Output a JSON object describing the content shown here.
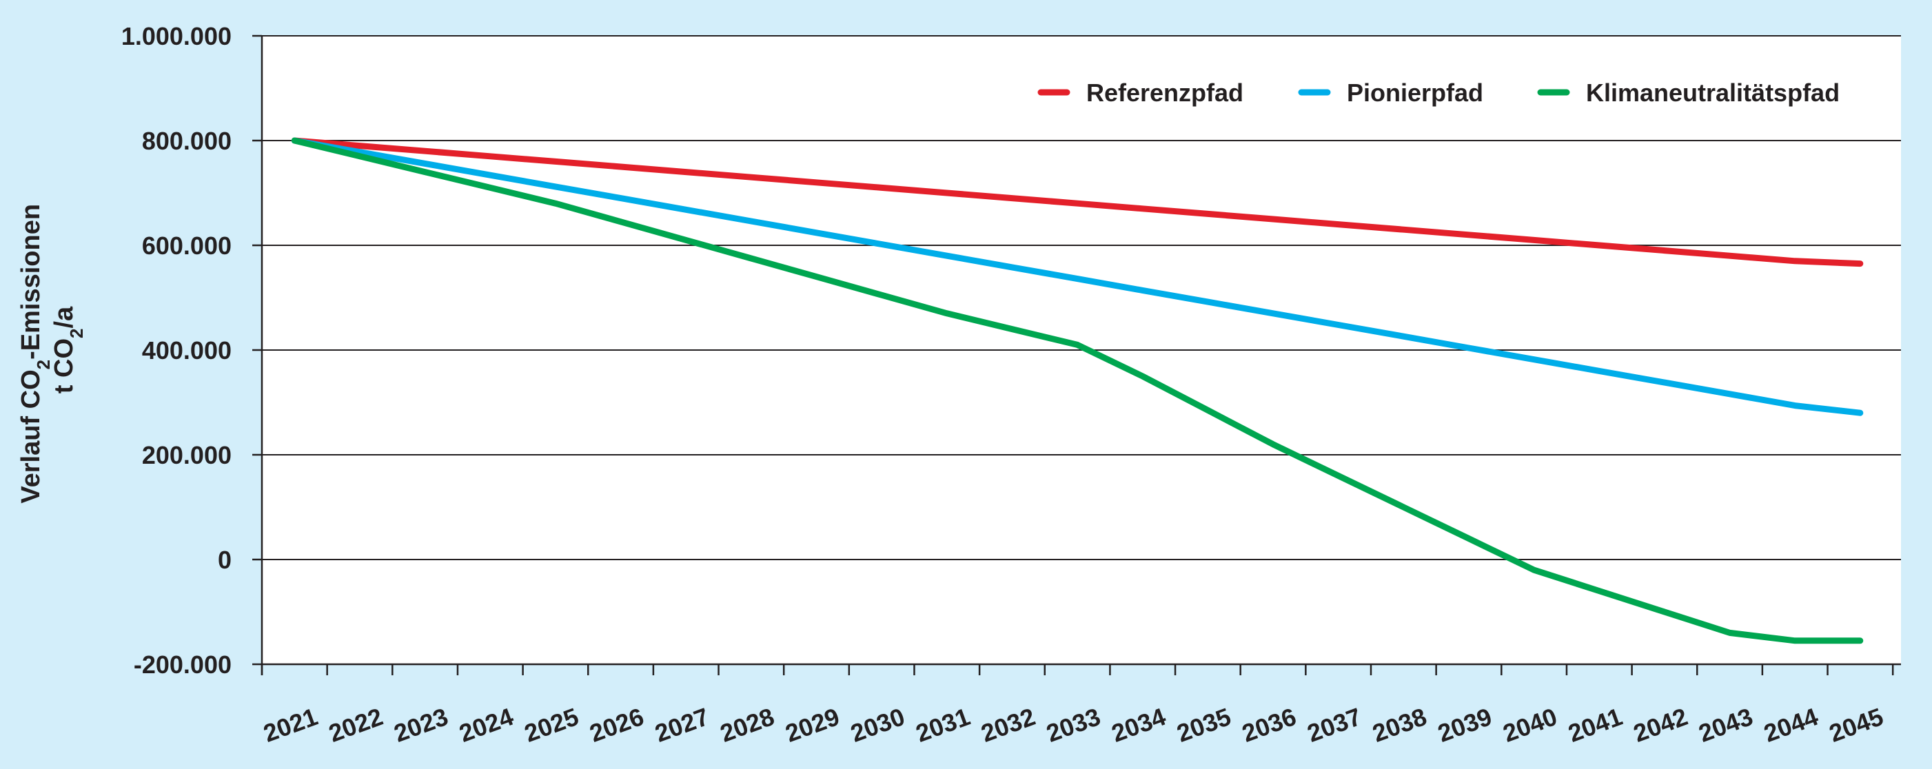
{
  "chart_data": {
    "type": "line",
    "title": "",
    "ylabel_line1_parts": [
      "Verlauf CO",
      "2",
      "-Emissionen"
    ],
    "ylabel_line2_parts": [
      "t CO",
      "2",
      "/a"
    ],
    "xlabel": "",
    "ylim": [
      -200000,
      1000000
    ],
    "y_ticks": [
      -200000,
      0,
      200000,
      400000,
      600000,
      800000,
      1000000
    ],
    "y_tick_labels": [
      "-200.000",
      "0",
      "200.000",
      "400.000",
      "600.000",
      "800.000",
      "1.000.000"
    ],
    "x": [
      "2021",
      "2022",
      "2023",
      "2024",
      "2025",
      "2026",
      "2027",
      "2028",
      "2029",
      "2030",
      "2031",
      "2032",
      "2033",
      "2034",
      "2035",
      "2036",
      "2037",
      "2038",
      "2039",
      "2040",
      "2041",
      "2042",
      "2043",
      "2044",
      "2045"
    ],
    "grid": "horizontal",
    "legend_position": "top-right",
    "series": [
      {
        "name": "Referenzpfad",
        "color": "#e3202a",
        "values": [
          800000,
          790000,
          780000,
          770000,
          760000,
          750000,
          740000,
          730000,
          720000,
          710000,
          700000,
          690000,
          680000,
          670000,
          660000,
          650000,
          640000,
          630000,
          620000,
          610000,
          600000,
          590000,
          580000,
          570000,
          565000
        ]
      },
      {
        "name": "Pionierpfad",
        "color": "#00ade9",
        "values": [
          800000,
          778000,
          756000,
          734000,
          712000,
          690000,
          668000,
          646000,
          624000,
          602000,
          580000,
          558000,
          536000,
          514000,
          492000,
          470000,
          448000,
          426000,
          404000,
          382000,
          360000,
          338000,
          316000,
          294000,
          280000
        ]
      },
      {
        "name": "Klimaneutralitätspfad",
        "color": "#00a650",
        "values": [
          800000,
          770000,
          740000,
          710000,
          680000,
          645000,
          610000,
          575000,
          540000,
          505000,
          470000,
          440000,
          410000,
          350000,
          285000,
          220000,
          160000,
          100000,
          40000,
          -20000,
          -60000,
          -100000,
          -140000,
          -155000,
          -155000
        ]
      }
    ]
  }
}
